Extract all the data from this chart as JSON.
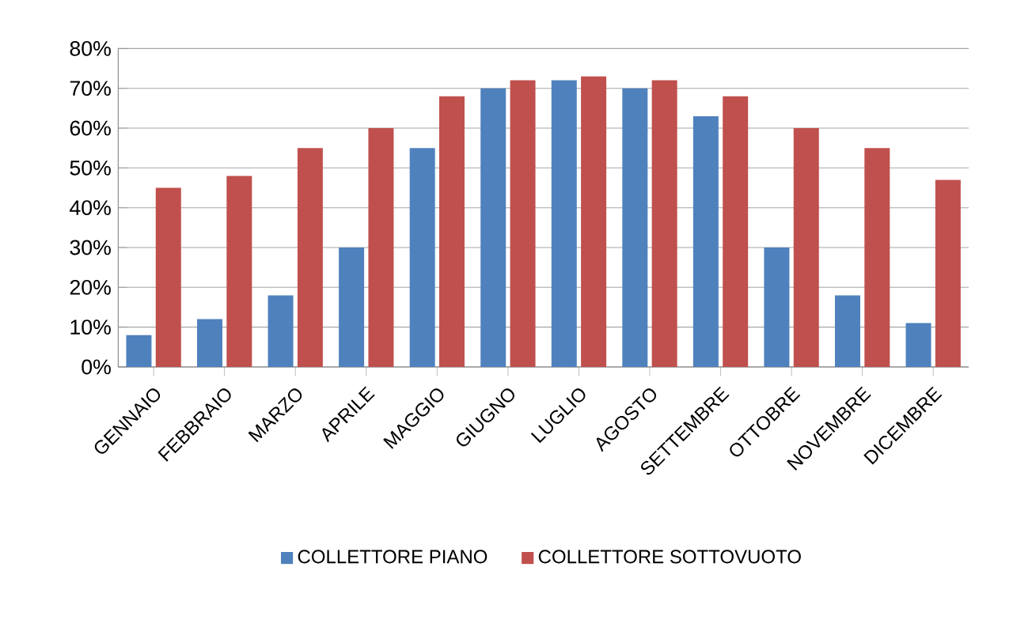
{
  "chart_data": {
    "type": "bar",
    "categories": [
      "GENNAIO",
      "FEBBRAIO",
      "MARZO",
      "APRILE",
      "MAGGIO",
      "GIUGNO",
      "LUGLIO",
      "AGOSTO",
      "SETTEMBRE",
      "OTTOBRE",
      "NOVEMBRE",
      "DICEMBRE"
    ],
    "series": [
      {
        "name": "COLLETTORE PIANO",
        "color": "#4f81bd",
        "values": [
          8,
          12,
          18,
          30,
          55,
          70,
          72,
          70,
          63,
          30,
          18,
          11
        ]
      },
      {
        "name": "COLLETTORE SOTTOVUOTO",
        "color": "#c0504d",
        "values": [
          45,
          48,
          55,
          60,
          68,
          72,
          73,
          72,
          68,
          60,
          55,
          47
        ]
      }
    ],
    "ylim": [
      0,
      80
    ],
    "yticks": [
      {
        "value": 0,
        "label": "0%"
      },
      {
        "value": 10,
        "label": "10%"
      },
      {
        "value": 20,
        "label": "20%"
      },
      {
        "value": 30,
        "label": "30%"
      },
      {
        "value": 40,
        "label": "40%"
      },
      {
        "value": 50,
        "label": "50%"
      },
      {
        "value": 60,
        "label": "60%"
      },
      {
        "value": 70,
        "label": "70%"
      },
      {
        "value": 80,
        "label": "80%"
      }
    ],
    "grid": "y",
    "legend": "bottom"
  }
}
